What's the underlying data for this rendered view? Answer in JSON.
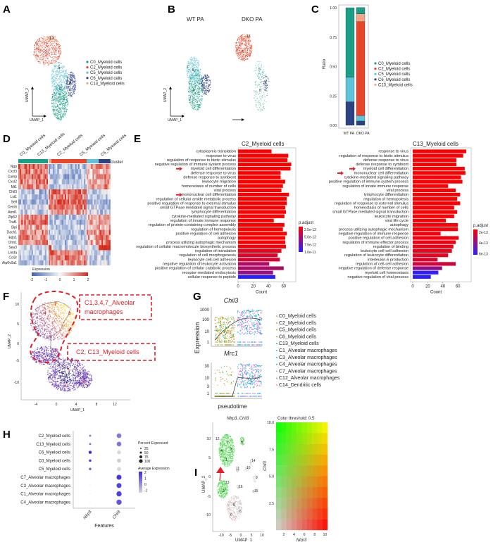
{
  "panel_labels": [
    "A",
    "B",
    "C",
    "D",
    "E",
    "F",
    "G",
    "H",
    "I"
  ],
  "cluster_colors": {
    "C0": "#1a9e86",
    "C2": "#e8462c",
    "C5": "#5fc3d9",
    "C6": "#2e4283",
    "C13": "#f4a58a"
  },
  "chart_data": [
    {
      "panel": "A",
      "type": "scatter",
      "xlabel": "UMAP_1",
      "ylabel": "UMAP_2",
      "cluster_labels": [
        "13",
        "2",
        "5",
        "0",
        "6"
      ],
      "legend": [
        {
          "key": "C0",
          "name": "C0_Myeloid cells"
        },
        {
          "key": "C2",
          "name": "C2_Myeloid cells"
        },
        {
          "key": "C5",
          "name": "C5_Myeloid cells"
        },
        {
          "key": "C6",
          "name": "C6_Myeloid cells"
        },
        {
          "key": "C13",
          "name": "C13_Myeloid cells"
        }
      ]
    },
    {
      "panel": "B",
      "type": "scatter",
      "xlabel": "UMAP_1",
      "ylabel": "UMAP_2",
      "titles": [
        "WT PA",
        "DKO PA"
      ],
      "wt_cluster_labels": [
        "2",
        "5",
        "0",
        "6"
      ],
      "dko_cluster_labels": [
        "13",
        "2",
        "5",
        "6",
        "0"
      ]
    },
    {
      "panel": "C",
      "type": "bar",
      "stacked": true,
      "categories": [
        "WT PA",
        "DKO PA"
      ],
      "ylabel": "Ratio",
      "yticks": [
        "0.00",
        "0.25",
        "0.50",
        "0.75",
        "1.00"
      ],
      "ylim": [
        0,
        1
      ],
      "stack_order": [
        "C6",
        "C5",
        "C2",
        "C13",
        "C0"
      ],
      "series": [
        {
          "key": "C0",
          "name": "C0_Myeloid cells",
          "values": [
            0.59,
            0.054
          ]
        },
        {
          "key": "C2",
          "name": "C2_Myeloid cells",
          "values": [
            0.0,
            0.8
          ]
        },
        {
          "key": "C5",
          "name": "C5_Myeloid cells",
          "values": [
            0.21,
            0.046
          ]
        },
        {
          "key": "C6",
          "name": "C6_Myeloid cells",
          "values": [
            0.2,
            0.036
          ]
        },
        {
          "key": "C13",
          "name": "C13_Myeloid cells",
          "values": [
            0.0,
            0.066
          ]
        }
      ]
    },
    {
      "panel": "D",
      "type": "heatmap",
      "columns": [
        "C0_Myeloid cells",
        "C13_Myeloid cells",
        "C2_Myeloid cells",
        "C5_Myeloid cells",
        "C6_Myeloid cells"
      ],
      "column_keys": [
        "C0",
        "C13",
        "C2",
        "C5",
        "C6"
      ],
      "annotation_label": "cluster",
      "legend_title": "Expression",
      "legend_ticks": [
        "-2",
        "-1",
        "0",
        "1",
        "2"
      ],
      "genes": [
        "Ngp",
        "Cxcl3",
        "Camp",
        "Cxcl2",
        "Mt1",
        "Chil3",
        "Lst1",
        "Sell",
        "Cers6",
        "Atml1",
        "Zfp52",
        "Traf1",
        "Slpi",
        "Dach1",
        "Edn1",
        "Orm1",
        "Sea3",
        "Lmda",
        "Ccl3r",
        "Atp6v0a1"
      ],
      "cluster_means": [
        [
          1.5,
          -0.8,
          -0.8,
          0.8,
          1.2
        ],
        [
          1.2,
          -0.8,
          -0.8,
          0.5,
          0.8
        ],
        [
          1.3,
          -0.9,
          -0.9,
          0.6,
          1.0
        ],
        [
          1.2,
          -0.5,
          -0.7,
          0.6,
          1.0
        ],
        [
          1.0,
          -0.6,
          -0.5,
          0.8,
          0.9
        ],
        [
          -0.8,
          1.2,
          1.3,
          -0.6,
          -0.7
        ],
        [
          -0.7,
          1.0,
          1.1,
          -0.6,
          -0.5
        ],
        [
          -0.9,
          1.4,
          1.4,
          -0.8,
          -0.9
        ],
        [
          -0.5,
          1.0,
          1.1,
          -0.4,
          -0.6
        ],
        [
          -0.6,
          0.9,
          1.0,
          -0.5,
          -0.7
        ],
        [
          1.0,
          -0.7,
          -0.8,
          0.8,
          1.0
        ],
        [
          1.2,
          -0.8,
          -0.8,
          0.9,
          1.1
        ],
        [
          0.9,
          -0.6,
          -0.7,
          0.5,
          0.7
        ],
        [
          1.1,
          -0.8,
          -0.8,
          0.9,
          1.2
        ],
        [
          1.0,
          -0.6,
          -0.7,
          0.8,
          1.3
        ],
        [
          0.9,
          -0.5,
          -0.7,
          0.8,
          1.2
        ],
        [
          -0.5,
          1.5,
          -0.4,
          -0.3,
          2.0
        ],
        [
          -0.6,
          1.0,
          1.2,
          -0.4,
          -0.5
        ],
        [
          -0.7,
          0.8,
          1.1,
          -0.5,
          -0.6
        ],
        [
          -0.6,
          0.8,
          1.0,
          -0.5,
          -0.5
        ]
      ]
    },
    {
      "panel": "E",
      "type": "bar",
      "orientation": "horizontal",
      "title": "C2_Myeloid cells",
      "xlabel": "Count",
      "xticks": [
        "0",
        "20",
        "40",
        "60"
      ],
      "legend_title": "p.adjust",
      "legend_ticks": [
        "2.5e-12",
        "5.0e-12",
        "7.5e-12",
        "1.0e-11"
      ],
      "padj_range": [
        1e-12,
        1.1e-11
      ],
      "terms": [
        {
          "term": "cytoplasmic translation",
          "count": 44,
          "padj": 1e-12
        },
        {
          "term": "response to virus",
          "count": 66,
          "padj": 1e-12
        },
        {
          "term": "regulation of response to biotic stimulus",
          "count": 65,
          "padj": 1e-12
        },
        {
          "term": "negative regulation of immune system process",
          "count": 70,
          "padj": 1e-12
        },
        {
          "term": "myeloid cell differentiation",
          "count": 69,
          "padj": 1e-12,
          "arrow": true
        },
        {
          "term": "defense response to virus",
          "count": 56,
          "padj": 1e-12
        },
        {
          "term": "defense response to symbiont",
          "count": 56,
          "padj": 1e-12
        },
        {
          "term": "leukocyte migration",
          "count": 62,
          "padj": 1e-12
        },
        {
          "term": "homeostasis of number of cells",
          "count": 59,
          "padj": 1e-12
        },
        {
          "term": "viral process",
          "count": 57,
          "padj": 1e-12
        },
        {
          "term": "mononuclear cell differentiation",
          "count": 67,
          "padj": 1e-12,
          "arrow": true
        },
        {
          "term": "regulation of cellular amide metabolic process",
          "count": 64,
          "padj": 1e-12
        },
        {
          "term": "positive regulation of response to external stimulus",
          "count": 64,
          "padj": 1e-12
        },
        {
          "term": "small GTPase mediated signal transduction",
          "count": 62,
          "padj": 1e-12
        },
        {
          "term": "lymphocyte differentiation",
          "count": 63,
          "padj": 1e-12
        },
        {
          "term": "cytokine-mediated signaling pathway",
          "count": 61,
          "padj": 1e-12
        },
        {
          "term": "regulation of innate immune response",
          "count": 47,
          "padj": 1e-12
        },
        {
          "term": "regulation of protein-containing complex assembly",
          "count": 61,
          "padj": 1e-12
        },
        {
          "term": "regulation of hemopoiesis",
          "count": 59,
          "padj": 1e-12
        },
        {
          "term": "positive regulation of cell adhesion",
          "count": 64,
          "padj": 1e-12
        },
        {
          "term": "autophagy",
          "count": 62,
          "padj": 1.2e-12
        },
        {
          "term": "process utilizing autophagic mechanism",
          "count": 62,
          "padj": 1.2e-12
        },
        {
          "term": "regulation of cellular macromolecule biosynthetic process",
          "count": 63,
          "padj": 1.5e-12
        },
        {
          "term": "regulation of translation",
          "count": 57,
          "padj": 2e-12
        },
        {
          "term": "regulation of cell morphogenesis",
          "count": 52,
          "padj": 2.5e-12
        },
        {
          "term": "leukocyte cell-cell adhesion",
          "count": 55,
          "padj": 3e-12
        },
        {
          "term": "negative regulation of leukocyte activation",
          "count": 41,
          "padj": 5e-12
        },
        {
          "term": "positive regulation of cellular catabolic process",
          "count": 60,
          "padj": 5e-12
        },
        {
          "term": "receptor-mediated endocytosis",
          "count": 46,
          "padj": 6e-12
        },
        {
          "term": "cellular response to peptide",
          "count": 49,
          "padj": 1.1e-11
        }
      ]
    },
    {
      "panel": "E",
      "type": "bar",
      "orientation": "horizontal",
      "title": "C13_Myeloid cells",
      "xlabel": "Count",
      "xticks": [
        "0",
        "20",
        "40",
        "60"
      ],
      "legend_title": "p.adjust",
      "legend_ticks": [
        "2e-13",
        "4e-13",
        "6e-13"
      ],
      "padj_range": [
        0,
        6.8e-13
      ],
      "terms": [
        {
          "term": "response to virus",
          "count": 71,
          "padj": 1e-14
        },
        {
          "term": "regulation of response to biotic stimulus",
          "count": 67,
          "padj": 1e-14
        },
        {
          "term": "defense response to virus",
          "count": 58,
          "padj": 1e-14
        },
        {
          "term": "defense response to symbiont",
          "count": 58,
          "padj": 1e-14
        },
        {
          "term": "myeloid cell differentiation",
          "count": 69,
          "padj": 1e-14,
          "arrow": true
        },
        {
          "term": "mononuclear cell differentiation",
          "count": 70,
          "padj": 1e-14,
          "arrow": true
        },
        {
          "term": "cytokine-mediated signaling pathway",
          "count": 64,
          "padj": 1e-14
        },
        {
          "term": "positive regulation of immune system process",
          "count": 66,
          "padj": 1e-14
        },
        {
          "term": "regulation of innate immune response",
          "count": 47,
          "padj": 1e-14
        },
        {
          "term": "viral process",
          "count": 57,
          "padj": 1e-14
        },
        {
          "term": "lymphocyte differentiation",
          "count": 63,
          "padj": 1e-14
        },
        {
          "term": "regulation of hemopoiesis",
          "count": 59,
          "padj": 1e-14
        },
        {
          "term": "regulation of response to external stimulus",
          "count": 63,
          "padj": 1e-14
        },
        {
          "term": "homeostasis of number of cells",
          "count": 55,
          "padj": 1e-14
        },
        {
          "term": "small GTPase mediated signal transduction",
          "count": 59,
          "padj": 1e-14
        },
        {
          "term": "leukocyte migration",
          "count": 55,
          "padj": 1e-14
        },
        {
          "term": "viral life cycle",
          "count": 44,
          "padj": 2e-14
        },
        {
          "term": "autophagy",
          "count": 60,
          "padj": 2e-14
        },
        {
          "term": "process utilizing autophagic mechanism",
          "count": 60,
          "padj": 2e-14
        },
        {
          "term": "negative regulation of immune response",
          "count": 37,
          "padj": 3e-14
        },
        {
          "term": "positive regulation of cell adhesion",
          "count": 61,
          "padj": 4e-14
        },
        {
          "term": "regulation of immune effector process",
          "count": 57,
          "padj": 5e-14
        },
        {
          "term": "regulation of binding",
          "count": 54,
          "padj": 6e-14
        },
        {
          "term": "leukocyte cell-cell adhesion",
          "count": 52,
          "padj": 7e-14
        },
        {
          "term": "regulation of leukocyte differentiation",
          "count": 47,
          "padj": 8e-14
        },
        {
          "term": "interleukin-6 production",
          "count": 33,
          "padj": 1.2e-13
        },
        {
          "term": "regulation of cell-cell adhesion",
          "count": 57,
          "padj": 1.6e-13
        },
        {
          "term": "negative regulation of defense response",
          "count": 39,
          "padj": 3.6e-13
        },
        {
          "term": "myeloid cell homeostasis",
          "count": 34,
          "padj": 6.6e-13
        },
        {
          "term": "negative regulation of viral process",
          "count": 24,
          "padj": 6.7e-13
        }
      ]
    },
    {
      "panel": "F",
      "type": "scatter",
      "xlabel": "UMAP_1",
      "ylabel": "UMAP_2",
      "xticks": [
        "-4",
        "0",
        "4",
        "8",
        "12"
      ],
      "yticks": [
        "10",
        "5",
        "0",
        "-5",
        "-10"
      ],
      "cluster_labels_top": [
        "7",
        "4",
        "3"
      ],
      "cluster_labels_bottom": [
        "13",
        "2",
        "5",
        "0",
        "6"
      ],
      "annotations": [
        "C1,3,4,7_Alveolar",
        "macrophages",
        "C2, C13_Myeloid cells"
      ]
    },
    {
      "panel": "G",
      "type": "scatter",
      "ylabel": "Expression",
      "xlabel": "pseudotime",
      "genes": [
        {
          "name": "Chil3",
          "yticks": [
            "1",
            "10",
            "100",
            "1000"
          ]
        },
        {
          "name": "Mrc1",
          "yticks": [
            "1",
            "3",
            "10",
            "30"
          ]
        }
      ],
      "legend": [
        {
          "name": "C0_Myeloid cells",
          "color": "#F8766D"
        },
        {
          "name": "C2_Myeloid cells",
          "color": "#DB8E00"
        },
        {
          "name": "C5_Myeloid cells",
          "color": "#AEA200"
        },
        {
          "name": "C6_Myeloid cells",
          "color": "#64B200"
        },
        {
          "name": "C13_Myeloid cells",
          "color": "#00BD5C"
        },
        {
          "name": "C1_Alveolar macrophages",
          "color": "#00C1A7"
        },
        {
          "name": "C3_Alveolar macrophages",
          "color": "#00BADE"
        },
        {
          "name": "C4_Alveolar macrophages",
          "color": "#00A6FF"
        },
        {
          "name": "C7_Alveolar macrophages",
          "color": "#B385FF"
        },
        {
          "name": "C12_Alveolar macrophages",
          "color": "#EF67EB"
        },
        {
          "name": "C14_Dendritic cells",
          "color": "#FF63B6"
        }
      ]
    },
    {
      "panel": "H",
      "type": "dotplot",
      "xlabel": "Features",
      "features": [
        "Nlrp3",
        "Chil3"
      ],
      "rows": [
        {
          "name": "C2_Myeloid cells",
          "pct": [
            30,
            90
          ],
          "avg": [
            0.8,
            0.6
          ]
        },
        {
          "name": "C13_Myeloid cells",
          "pct": [
            30,
            88
          ],
          "avg": [
            0.8,
            0.7
          ]
        },
        {
          "name": "C6_Myeloid cells",
          "pct": [
            55,
            70
          ],
          "avg": [
            2.0,
            -1.0
          ]
        },
        {
          "name": "C0_Myeloid cells",
          "pct": [
            42,
            72
          ],
          "avg": [
            1.5,
            -0.8
          ]
        },
        {
          "name": "C5_Myeloid cells",
          "pct": [
            38,
            72
          ],
          "avg": [
            1.2,
            -1.0
          ]
        },
        {
          "name": "C7_Alveolar macrophages",
          "pct": [
            4,
            95
          ],
          "avg": [
            -1.0,
            1.8
          ]
        },
        {
          "name": "C3_Alveolar macrophages",
          "pct": [
            6,
            95
          ],
          "avg": [
            -1.0,
            1.6
          ]
        },
        {
          "name": "C1_Alveolar macrophages",
          "pct": [
            5,
            100
          ],
          "avg": [
            -1.0,
            1.6
          ]
        },
        {
          "name": "C4_Alveolar macrophages",
          "pct": [
            4,
            100
          ],
          "avg": [
            -1.0,
            1.3
          ]
        }
      ],
      "size_legend_title": "Percent Expressed",
      "size_legend": [
        "25",
        "50",
        "75",
        "100"
      ],
      "color_legend_title": "Average Expression",
      "color_legend": [
        "2",
        "1",
        "0",
        "-1"
      ]
    },
    {
      "panel": "I",
      "type": "scatter",
      "title": "Nlrp3_Chil3",
      "xlabel": "UMAP_1",
      "ylabel": "UMAP_2",
      "xticks": [
        "-10",
        "-5",
        "0",
        "5",
        "10"
      ],
      "yticks": [
        "10",
        "5",
        "0",
        "-5",
        "-10"
      ],
      "cluster_labels": [
        "12",
        "7",
        "4",
        "3",
        "1",
        "8",
        "14",
        "11",
        "10",
        "9",
        "13",
        "16",
        "2",
        "15",
        "5",
        "6",
        "0"
      ],
      "blend_legend": {
        "title": "Color threshold: 0.5",
        "xlabel": "Nlrp3",
        "ylabel": "Chil3",
        "xticks": [
          "2",
          "4",
          "6",
          "8",
          "10"
        ],
        "yticks": [
          "2.5",
          "5.0",
          "7.5",
          "10.0"
        ],
        "colors": {
          "low_low": "#d3d3d3",
          "high_x": "#ff0000",
          "high_y": "#00ff00",
          "high_both": "#ffff00"
        }
      }
    }
  ]
}
